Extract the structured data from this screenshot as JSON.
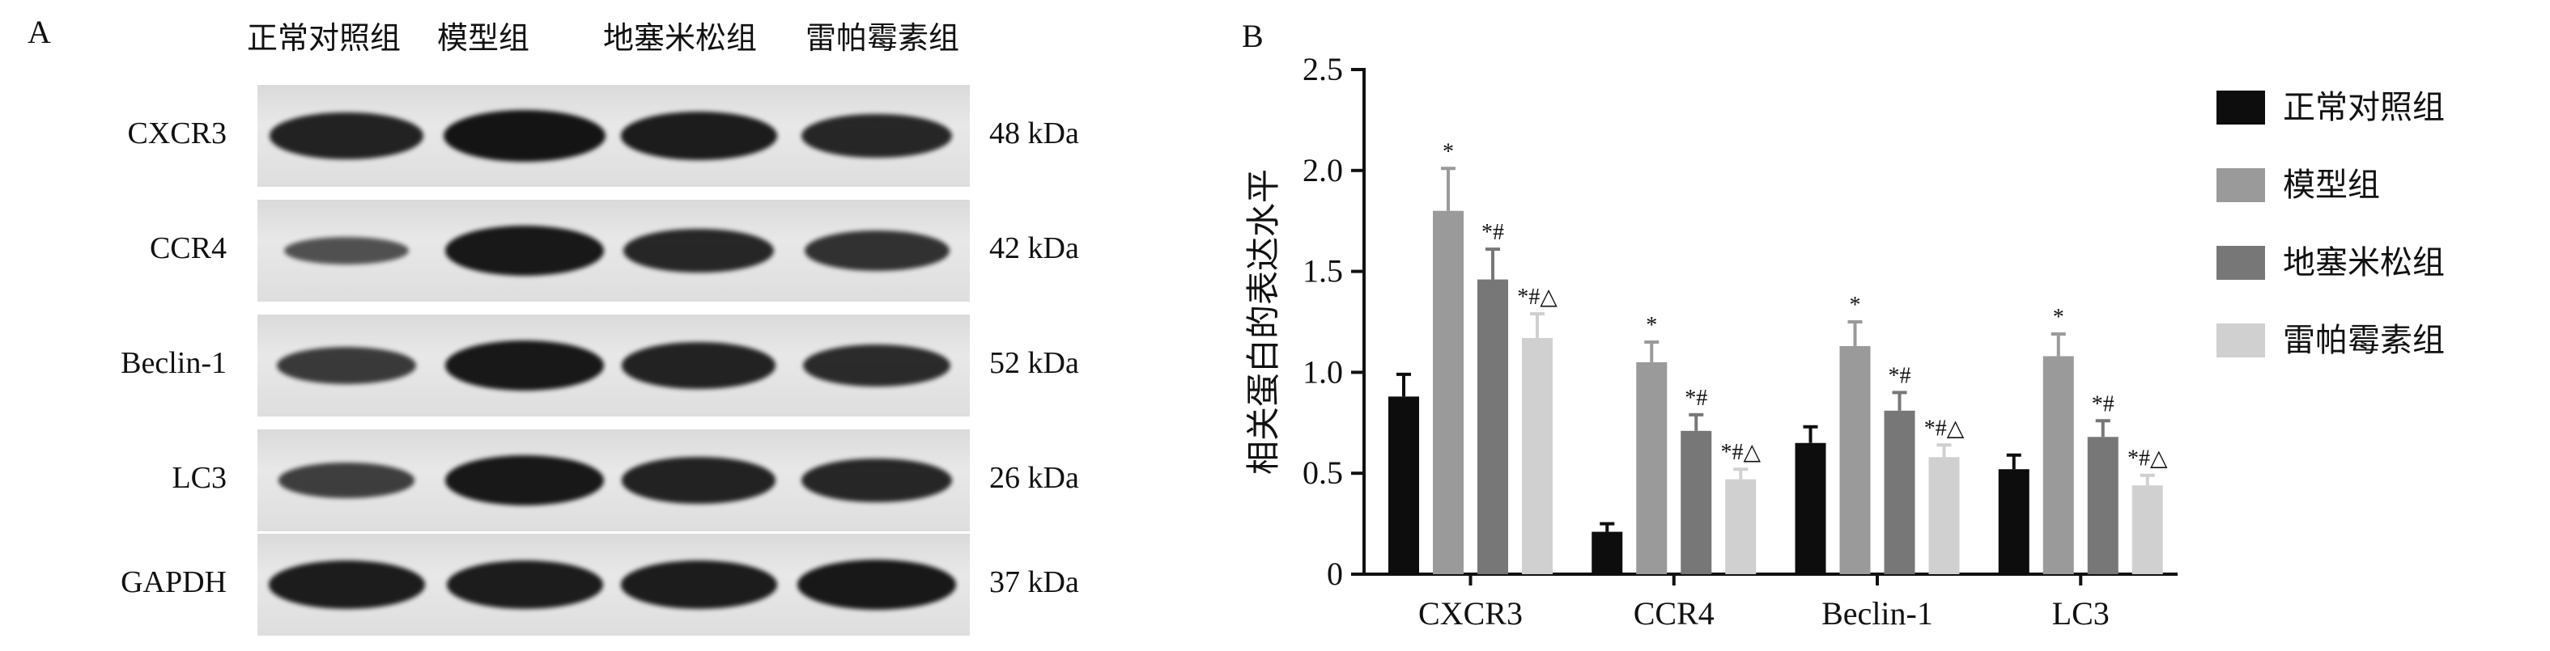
{
  "panel_a": {
    "letter": "A",
    "lane_headers": [
      "正常对照组",
      "模型组",
      "地塞米松组",
      "雷帕霉素组"
    ],
    "rows": [
      {
        "protein": "CXCR3",
        "kda": "48 kDa",
        "intensity": [
          0.85,
          1.0,
          0.9,
          0.8
        ]
      },
      {
        "protein": "CCR4",
        "kda": "42 kDa",
        "intensity": [
          0.35,
          0.95,
          0.8,
          0.7
        ]
      },
      {
        "protein": "Beclin-1",
        "kda": "52 kDa",
        "intensity": [
          0.6,
          0.95,
          0.85,
          0.75
        ]
      },
      {
        "protein": "LC3",
        "kda": "26 kDa",
        "intensity": [
          0.55,
          0.95,
          0.85,
          0.8
        ]
      },
      {
        "protein": "GAPDH",
        "kda": "37 kDa",
        "intensity": [
          0.9,
          0.9,
          0.9,
          0.95
        ]
      }
    ]
  },
  "chart_data": {
    "letter": "B",
    "type": "bar",
    "ylabel": "相关蛋白的表达水平",
    "categories": [
      "CXCR3",
      "CCR4",
      "Beclin-1",
      "LC3"
    ],
    "ylim": [
      0,
      2.5
    ],
    "yticks": [
      "0",
      "0.5",
      "1.0",
      "1.5",
      "2.0",
      "2.5"
    ],
    "legend_position": "right",
    "series": [
      {
        "name": "正常对照组",
        "color": "#0d0d0d",
        "values": [
          0.88,
          0.21,
          0.65,
          0.52
        ],
        "errors": [
          0.11,
          0.04,
          0.08,
          0.07
        ],
        "marks": [
          "",
          "",
          "",
          ""
        ]
      },
      {
        "name": "模型组",
        "color": "#9a9a9a",
        "values": [
          1.8,
          1.05,
          1.13,
          1.08
        ],
        "errors": [
          0.21,
          0.1,
          0.12,
          0.11
        ],
        "marks": [
          "*",
          "*",
          "*",
          "*"
        ]
      },
      {
        "name": "地塞米松组",
        "color": "#777777",
        "values": [
          1.46,
          0.71,
          0.81,
          0.68
        ],
        "errors": [
          0.15,
          0.08,
          0.09,
          0.08
        ],
        "marks": [
          "*#",
          "*#",
          "*#",
          "*#"
        ]
      },
      {
        "name": "雷帕霉素组",
        "color": "#d0d0d0",
        "values": [
          1.17,
          0.47,
          0.58,
          0.44
        ],
        "errors": [
          0.12,
          0.05,
          0.06,
          0.05
        ],
        "marks": [
          "*#△",
          "*#△",
          "*#△",
          "*#△"
        ]
      }
    ]
  }
}
